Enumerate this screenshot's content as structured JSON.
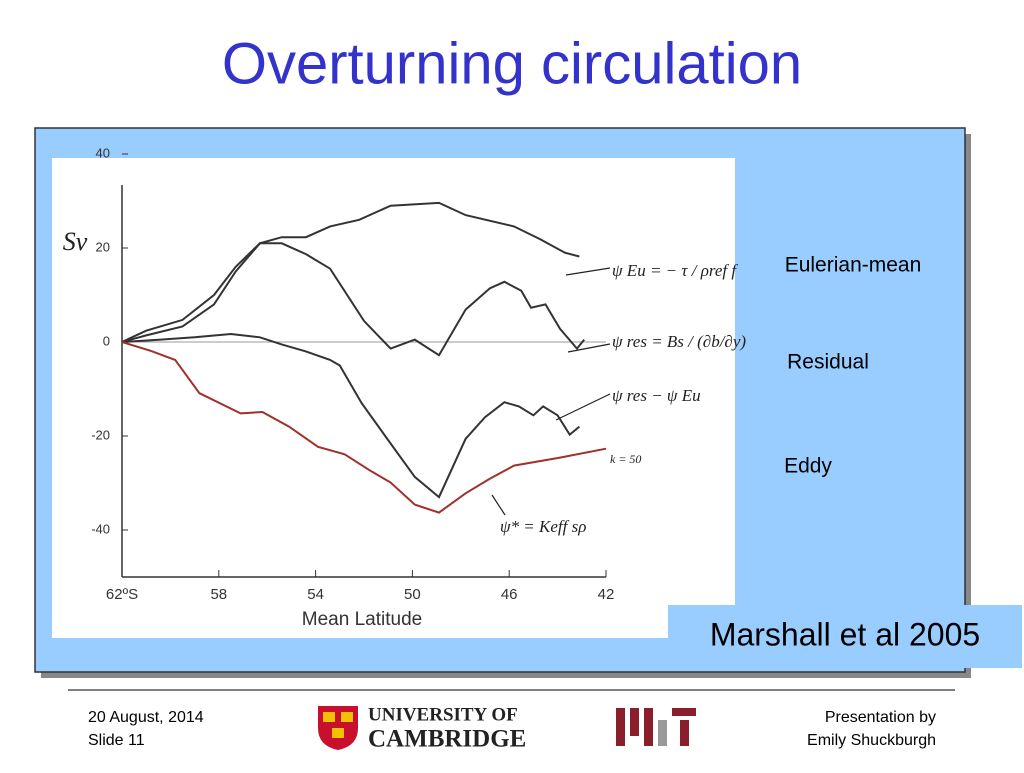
{
  "slide": {
    "title": "Overturning circulation",
    "labels": [
      "Eulerian-mean",
      "Residual",
      "Eddy"
    ],
    "citation": "Marshall et al 2005",
    "footer": {
      "date": "20 August, 2014",
      "slide": "Slide 11",
      "university_line1": "UNIVERSITY OF",
      "university_line2": "CAMBRIDGE",
      "presenter_line1": "Presentation by",
      "presenter_line2": "Emily Shuckburgh"
    }
  },
  "chart_data": {
    "type": "line",
    "ylabel": "Sv",
    "xlabel": "Mean Latitude",
    "xlim": [
      62,
      42
    ],
    "ylim": [
      -50,
      40
    ],
    "xticks": [
      {
        "value": 62,
        "label": "62ºS"
      },
      58,
      54,
      50,
      46,
      42
    ],
    "yticks": [
      -40,
      -20,
      0,
      20,
      40
    ],
    "annotations": [
      "ψ Eu = − τ / ρref f",
      "ψ res = Bs / (∂b/∂y)",
      "ψ res − ψ Eu",
      "ψ* = Keff sρ",
      "k = 50"
    ],
    "series": [
      {
        "name": "ψ Eu",
        "color": "#333333",
        "x": [
          62,
          61.0,
          59.5,
          58.2,
          57.3,
          56.3,
          55.4,
          54.4,
          53.4,
          52.2,
          50.9,
          48.9,
          47.8,
          45.8,
          44.7,
          43.7,
          43.1
        ],
        "values": [
          0,
          2.4,
          4.7,
          10,
          16,
          21,
          22.3,
          22.3,
          24.6,
          26,
          29,
          29.6,
          27,
          24.6,
          21.8,
          19,
          18.2
        ]
      },
      {
        "name": "ψ res",
        "color": "#333333",
        "x": [
          62,
          61.0,
          59.5,
          58.2,
          57.3,
          56.3,
          55.4,
          54.4,
          53.4,
          52.0,
          50.9,
          49.9,
          48.9,
          47.8,
          46.8,
          46.2,
          45.5,
          45.1,
          44.5,
          43.9,
          43.2,
          42.9
        ],
        "values": [
          0,
          1.4,
          3.3,
          8,
          15,
          21,
          21,
          18.7,
          15.6,
          4.5,
          -1.4,
          0.5,
          -2.8,
          6.9,
          11.4,
          12.8,
          10.9,
          7.3,
          8,
          2.8,
          -1.4,
          0.5
        ]
      },
      {
        "name": "ψ res − ψ Eu",
        "color": "#333333",
        "x": [
          62,
          60.4,
          59.0,
          57.5,
          56.3,
          55.4,
          54.4,
          53.4,
          53.0,
          52.1,
          50.9,
          49.9,
          48.9,
          47.8,
          47.0,
          46.2,
          45.6,
          45.0,
          44.6,
          44.0,
          43.5,
          43.1
        ],
        "values": [
          0,
          0.5,
          1,
          1.7,
          1,
          -0.5,
          -2,
          -3.8,
          -5,
          -13,
          -21.6,
          -28.7,
          -33,
          -20.6,
          -16,
          -12.8,
          -13.7,
          -15.6,
          -13.7,
          -15.6,
          -19.7,
          -18
        ]
      },
      {
        "name": "ψ*",
        "color": "#a0302a",
        "x": [
          62,
          60.8,
          59.8,
          58.8,
          57.1,
          56.2,
          55.1,
          53.9,
          52.8,
          51.7,
          50.9,
          49.9,
          48.9,
          47.8,
          46.8,
          45.8,
          43.9,
          42
        ],
        "values": [
          0,
          -1.9,
          -3.8,
          -10.9,
          -15.2,
          -14.9,
          -18,
          -22.3,
          -23.9,
          -27.5,
          -29.9,
          -34.6,
          -36.3,
          -32.2,
          -29.1,
          -26.3,
          -24.6,
          -22.7
        ]
      }
    ]
  }
}
